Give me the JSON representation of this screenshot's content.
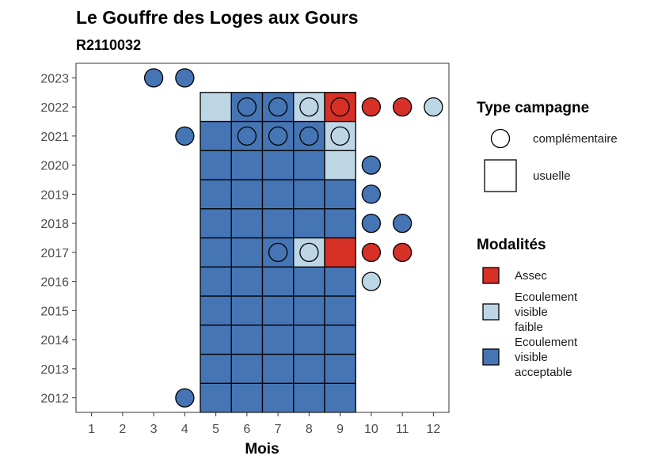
{
  "chart_data": {
    "type": "heatmap",
    "title": "Le Gouffre des Loges aux Gours",
    "subtitle": "R2110032",
    "xlabel": "Mois",
    "ylabel": "",
    "x_ticks": [
      "1",
      "2",
      "3",
      "4",
      "5",
      "6",
      "7",
      "8",
      "9",
      "10",
      "11",
      "12"
    ],
    "y_ticks": [
      "2012",
      "2013",
      "2014",
      "2015",
      "2016",
      "2017",
      "2018",
      "2019",
      "2020",
      "2021",
      "2022",
      "2023"
    ],
    "xlim": [
      0.5,
      12.5
    ],
    "ylim": [
      2011.5,
      2023.5
    ],
    "grid": false,
    "colors": {
      "assec": "#d73027",
      "faible": "#bcd6e6",
      "acceptable": "#4575b4"
    },
    "legend_type": {
      "title": "Type campagne",
      "items": [
        {
          "key": "complementaire",
          "label": "complémentaire",
          "shape": "circle"
        },
        {
          "key": "usuelle",
          "label": "usuelle",
          "shape": "square"
        }
      ]
    },
    "legend_modalites": {
      "title": "Modalités",
      "items": [
        {
          "key": "assec",
          "lines": [
            "Assec"
          ]
        },
        {
          "key": "faible",
          "lines": [
            "Ecoulement",
            "visible",
            "faible"
          ]
        },
        {
          "key": "acceptable",
          "lines": [
            "Ecoulement",
            "visible",
            "acceptable"
          ]
        }
      ]
    },
    "usuelle": [
      {
        "year": 2012,
        "months": [
          "acceptable",
          "acceptable",
          "acceptable",
          "acceptable",
          "acceptable"
        ]
      },
      {
        "year": 2013,
        "months": [
          "acceptable",
          "acceptable",
          "acceptable",
          "acceptable",
          "acceptable"
        ]
      },
      {
        "year": 2014,
        "months": [
          "acceptable",
          "acceptable",
          "acceptable",
          "acceptable",
          "acceptable"
        ]
      },
      {
        "year": 2015,
        "months": [
          "acceptable",
          "acceptable",
          "acceptable",
          "acceptable",
          "acceptable"
        ]
      },
      {
        "year": 2016,
        "months": [
          "acceptable",
          "acceptable",
          "acceptable",
          "acceptable",
          "acceptable"
        ]
      },
      {
        "year": 2017,
        "months": [
          "acceptable",
          "acceptable",
          "acceptable",
          "faible",
          "assec"
        ]
      },
      {
        "year": 2018,
        "months": [
          "acceptable",
          "acceptable",
          "acceptable",
          "acceptable",
          "acceptable"
        ]
      },
      {
        "year": 2019,
        "months": [
          "acceptable",
          "acceptable",
          "acceptable",
          "acceptable",
          "acceptable"
        ]
      },
      {
        "year": 2020,
        "months": [
          "acceptable",
          "acceptable",
          "acceptable",
          "acceptable",
          "faible"
        ]
      },
      {
        "year": 2021,
        "months": [
          "acceptable",
          "acceptable",
          "acceptable",
          "acceptable",
          "faible"
        ]
      },
      {
        "year": 2022,
        "months": [
          "faible",
          "acceptable",
          "acceptable",
          "faible",
          "assec"
        ]
      }
    ],
    "usuelle_month_start": 5,
    "complementaire": [
      {
        "year": 2012,
        "month": 4,
        "mod": "acceptable"
      },
      {
        "year": 2016,
        "month": 10,
        "mod": "faible"
      },
      {
        "year": 2017,
        "month": 7,
        "mod": "acceptable"
      },
      {
        "year": 2017,
        "month": 8,
        "mod": "faible"
      },
      {
        "year": 2017,
        "month": 10,
        "mod": "assec"
      },
      {
        "year": 2017,
        "month": 11,
        "mod": "assec"
      },
      {
        "year": 2018,
        "month": 10,
        "mod": "acceptable"
      },
      {
        "year": 2018,
        "month": 11,
        "mod": "acceptable"
      },
      {
        "year": 2019,
        "month": 10,
        "mod": "acceptable"
      },
      {
        "year": 2020,
        "month": 10,
        "mod": "acceptable"
      },
      {
        "year": 2021,
        "month": 4,
        "mod": "acceptable"
      },
      {
        "year": 2021,
        "month": 6,
        "mod": "acceptable"
      },
      {
        "year": 2021,
        "month": 7,
        "mod": "acceptable"
      },
      {
        "year": 2021,
        "month": 8,
        "mod": "acceptable"
      },
      {
        "year": 2021,
        "month": 9,
        "mod": "faible"
      },
      {
        "year": 2022,
        "month": 6,
        "mod": "acceptable"
      },
      {
        "year": 2022,
        "month": 7,
        "mod": "acceptable"
      },
      {
        "year": 2022,
        "month": 8,
        "mod": "faible"
      },
      {
        "year": 2022,
        "month": 9,
        "mod": "assec"
      },
      {
        "year": 2022,
        "month": 10,
        "mod": "assec"
      },
      {
        "year": 2022,
        "month": 11,
        "mod": "assec"
      },
      {
        "year": 2022,
        "month": 12,
        "mod": "faible"
      },
      {
        "year": 2023,
        "month": 3,
        "mod": "acceptable"
      },
      {
        "year": 2023,
        "month": 4,
        "mod": "acceptable"
      }
    ]
  }
}
